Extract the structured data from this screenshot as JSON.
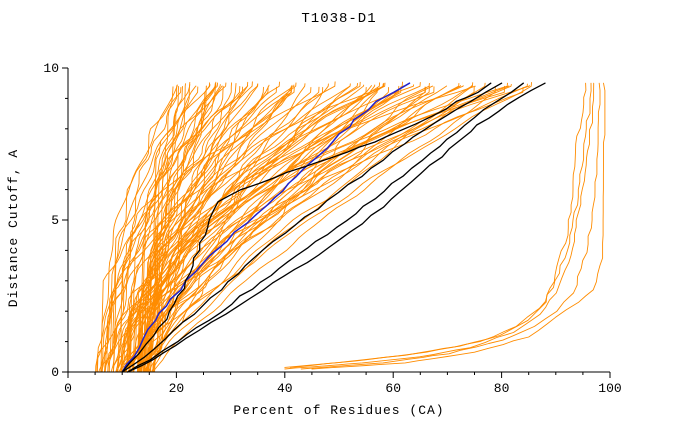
{
  "page": {
    "background": "#ffffff"
  },
  "chart_data": {
    "type": "line",
    "title": "T1038-D1",
    "xlabel": "Percent of Residues (CA)",
    "ylabel": "Distance Cutoff, A",
    "xlim": [
      0,
      100
    ],
    "ylim": [
      0,
      10
    ],
    "x_major_ticks": [
      0,
      20,
      40,
      60,
      80,
      100
    ],
    "x_minor_step": 5,
    "y_major_ticks": [
      0,
      5,
      10
    ],
    "y_minor_step": 1,
    "grid": false,
    "legend": "none",
    "axis_color": "#000000",
    "ensemble": {
      "description": "cluster of orange model curves (percent of CA residues under each distance cutoff)",
      "color": "#ff8c00",
      "width": 0.9,
      "count": 95,
      "seed": 1038,
      "start_x_range": [
        5,
        16
      ],
      "top_x_range": [
        20,
        88
      ],
      "top_y": 9.5
    },
    "series": [
      {
        "name": "orange-outlier-1",
        "color": "#ff8c00",
        "width": 0.9,
        "points": [
          [
            40,
            0.15
          ],
          [
            52,
            0.35
          ],
          [
            62,
            0.55
          ],
          [
            72,
            0.85
          ],
          [
            80,
            1.2
          ],
          [
            85,
            1.7
          ],
          [
            88,
            2.3
          ],
          [
            90,
            3.2
          ],
          [
            92,
            4.5
          ],
          [
            93,
            6.0
          ],
          [
            94,
            7.5
          ],
          [
            95,
            8.8
          ],
          [
            95.5,
            9.5
          ]
        ]
      },
      {
        "name": "orange-outlier-2",
        "color": "#ff8c00",
        "width": 0.9,
        "points": [
          [
            41,
            0.15
          ],
          [
            55,
            0.4
          ],
          [
            66,
            0.65
          ],
          [
            76,
            1.0
          ],
          [
            83,
            1.5
          ],
          [
            87,
            2.1
          ],
          [
            90,
            3.0
          ],
          [
            92,
            4.0
          ],
          [
            94,
            5.5
          ],
          [
            95,
            7.0
          ],
          [
            96,
            8.5
          ],
          [
            96.5,
            9.5
          ]
        ]
      },
      {
        "name": "orange-outlier-3",
        "color": "#ff8c00",
        "width": 0.9,
        "points": [
          [
            43,
            0.1
          ],
          [
            58,
            0.3
          ],
          [
            70,
            0.6
          ],
          [
            80,
            1.05
          ],
          [
            86,
            1.5
          ],
          [
            90,
            2.0
          ],
          [
            93,
            2.6
          ],
          [
            95,
            3.4
          ],
          [
            96.5,
            5.0
          ],
          [
            97.5,
            7.0
          ],
          [
            98,
            8.8
          ],
          [
            98,
            9.5
          ]
        ]
      },
      {
        "name": "orange-outlier-4",
        "color": "#ff8c00",
        "width": 0.9,
        "points": [
          [
            45,
            0.1
          ],
          [
            62,
            0.3
          ],
          [
            75,
            0.65
          ],
          [
            85,
            1.15
          ],
          [
            90,
            1.8
          ],
          [
            94,
            2.3
          ],
          [
            97,
            2.7
          ],
          [
            98.3,
            3.5
          ],
          [
            98.6,
            5.5
          ],
          [
            98.8,
            7.8
          ],
          [
            98.8,
            9.5
          ]
        ]
      },
      {
        "name": "orange-outlier-5",
        "color": "#ff8c00",
        "width": 0.9,
        "points": [
          [
            40,
            0.1
          ],
          [
            54,
            0.3
          ],
          [
            65,
            0.5
          ],
          [
            74,
            0.8
          ],
          [
            82,
            1.3
          ],
          [
            87,
            1.9
          ],
          [
            90,
            2.6
          ],
          [
            92.5,
            3.6
          ],
          [
            94,
            5.0
          ],
          [
            95.5,
            6.8
          ],
          [
            96.5,
            8.2
          ],
          [
            97,
            9.5
          ]
        ]
      },
      {
        "name": "blue-model",
        "color": "#2222cc",
        "width": 1.5,
        "points": [
          [
            10,
            0
          ],
          [
            12,
            0.5
          ],
          [
            14,
            1.1
          ],
          [
            16,
            1.7
          ],
          [
            19,
            2.4
          ],
          [
            22,
            3.0
          ],
          [
            25,
            3.6
          ],
          [
            29,
            4.3
          ],
          [
            33,
            4.9
          ],
          [
            37,
            5.5
          ],
          [
            41,
            6.2
          ],
          [
            45,
            6.9
          ],
          [
            49,
            7.6
          ],
          [
            53,
            8.3
          ],
          [
            57,
            8.9
          ],
          [
            60,
            9.2
          ],
          [
            63,
            9.5
          ]
        ]
      },
      {
        "name": "black-model-1",
        "color": "#000000",
        "width": 1.3,
        "points": [
          [
            10,
            0
          ],
          [
            13,
            0.6
          ],
          [
            16,
            1.2
          ],
          [
            19,
            2.0
          ],
          [
            22,
            3.0
          ],
          [
            24,
            4.0
          ],
          [
            26,
            5.0
          ],
          [
            28,
            5.6
          ],
          [
            32,
            6.0
          ],
          [
            38,
            6.4
          ],
          [
            46,
            6.9
          ],
          [
            54,
            7.4
          ],
          [
            61,
            7.9
          ],
          [
            67,
            8.4
          ],
          [
            72,
            8.9
          ],
          [
            76,
            9.2
          ],
          [
            78,
            9.5
          ]
        ]
      },
      {
        "name": "black-model-2",
        "color": "#000000",
        "width": 1.3,
        "points": [
          [
            10,
            0
          ],
          [
            14,
            0.5
          ],
          [
            18,
            1.1
          ],
          [
            23,
            1.9
          ],
          [
            28,
            2.7
          ],
          [
            33,
            3.5
          ],
          [
            38,
            4.3
          ],
          [
            44,
            5.1
          ],
          [
            50,
            5.9
          ],
          [
            56,
            6.7
          ],
          [
            62,
            7.5
          ],
          [
            68,
            8.2
          ],
          [
            74,
            8.9
          ],
          [
            80,
            9.5
          ]
        ]
      },
      {
        "name": "black-model-3",
        "color": "#000000",
        "width": 1.3,
        "points": [
          [
            11,
            0
          ],
          [
            15,
            0.4
          ],
          [
            20,
            1.0
          ],
          [
            26,
            1.7
          ],
          [
            32,
            2.5
          ],
          [
            39,
            3.4
          ],
          [
            46,
            4.3
          ],
          [
            53,
            5.2
          ],
          [
            60,
            6.2
          ],
          [
            67,
            7.2
          ],
          [
            73,
            8.1
          ],
          [
            79,
            8.9
          ],
          [
            84,
            9.5
          ]
        ]
      },
      {
        "name": "black-model-4",
        "color": "#000000",
        "width": 1.3,
        "points": [
          [
            11,
            0
          ],
          [
            16,
            0.4
          ],
          [
            22,
            1.1
          ],
          [
            29,
            1.9
          ],
          [
            36,
            2.7
          ],
          [
            44,
            3.6
          ],
          [
            52,
            4.6
          ],
          [
            60,
            5.7
          ],
          [
            67,
            6.8
          ],
          [
            74,
            7.9
          ],
          [
            81,
            8.8
          ],
          [
            88,
            9.5
          ]
        ]
      }
    ]
  }
}
